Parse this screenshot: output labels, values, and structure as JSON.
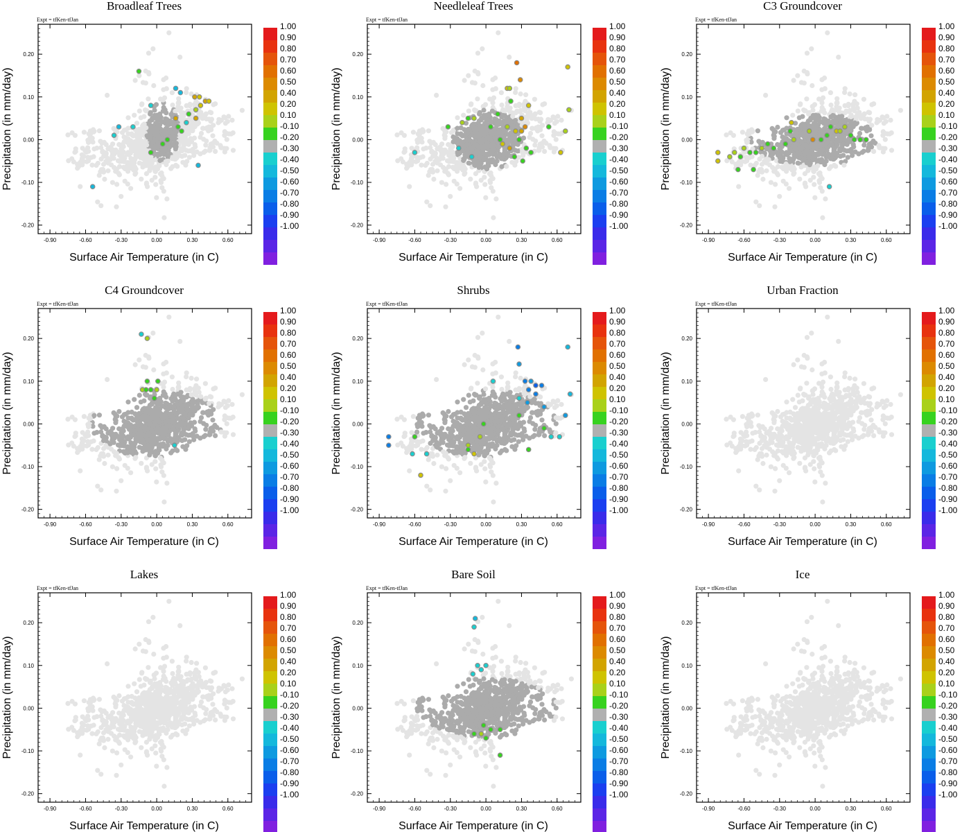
{
  "shared": {
    "expt_label": "Expt = tfKen-tfJan",
    "xlabel": "Surface Air Temperature (in C)",
    "ylabel": "Precipitation (in mm/day)",
    "xlim": [
      -1.0,
      0.8
    ],
    "ylim": [
      -0.22,
      0.27
    ],
    "xticks": [
      -0.9,
      -0.6,
      -0.3,
      0.0,
      0.3,
      0.6
    ],
    "xtick_labels": [
      "-0.90",
      "-0.60",
      "-0.30",
      "0.00",
      "0.30",
      "0.60"
    ],
    "yticks": [
      -0.2,
      -0.1,
      0.0,
      0.1,
      0.2
    ],
    "ytick_labels": [
      "-0.20",
      "-0.10",
      "0.00",
      "0.10",
      "0.20"
    ],
    "colorbar": {
      "labels": [
        "1.00",
        "0.90",
        "0.80",
        "0.70",
        "0.60",
        "0.50",
        "0.40",
        "0.20",
        "0.10",
        "-0.10",
        "-0.20",
        "-0.30",
        "-0.40",
        "-0.50",
        "-0.60",
        "-0.70",
        "-0.80",
        "-0.90",
        "-1.00"
      ],
      "colors": [
        "#e41a1c",
        "#e8320e",
        "#e5540a",
        "#e17000",
        "#dc8a00",
        "#d2a400",
        "#cfc300",
        "#a9d11a",
        "#37d21f",
        "#b0b0b0",
        "#19cfcf",
        "#14b8dc",
        "#0e9ae0",
        "#0a7de5",
        "#0a5eea",
        "#1b3ff0",
        "#3a2bea",
        "#5b25e6",
        "#8020e0"
      ]
    },
    "background_point_color": "#e4e4e4",
    "grey_point_color": "#ababab"
  },
  "chart_data": [
    {
      "type": "scatter",
      "title": "Broadleaf Trees",
      "highlight_points": [
        {
          "x": -0.15,
          "y": 0.16,
          "c": 0.1
        },
        {
          "x": -0.05,
          "y": 0.08,
          "c": -0.2
        },
        {
          "x": 0.16,
          "y": 0.12,
          "c": -0.3
        },
        {
          "x": 0.2,
          "y": 0.11,
          "c": -0.3
        },
        {
          "x": 0.32,
          "y": 0.1,
          "c": 0.5
        },
        {
          "x": 0.36,
          "y": 0.1,
          "c": 0.4
        },
        {
          "x": 0.41,
          "y": 0.09,
          "c": 0.5
        },
        {
          "x": 0.44,
          "y": 0.09,
          "c": 0.4
        },
        {
          "x": 0.37,
          "y": 0.08,
          "c": 0.4
        },
        {
          "x": 0.33,
          "y": 0.07,
          "c": 0.2
        },
        {
          "x": 0.27,
          "y": 0.06,
          "c": 0.1
        },
        {
          "x": 0.33,
          "y": 0.05,
          "c": 0.5
        },
        {
          "x": 0.16,
          "y": 0.05,
          "c": 0.5
        },
        {
          "x": 0.18,
          "y": 0.03,
          "c": 0.1
        },
        {
          "x": 0.21,
          "y": 0.02,
          "c": 0.1
        },
        {
          "x": 0.09,
          "y": 0.0,
          "c": 0.1
        },
        {
          "x": 0.05,
          "y": -0.01,
          "c": 0.1
        },
        {
          "x": -0.05,
          "y": -0.03,
          "c": 0.1
        },
        {
          "x": 0.25,
          "y": 0.04,
          "c": -0.2
        },
        {
          "x": -0.2,
          "y": 0.03,
          "c": -0.2
        },
        {
          "x": -0.36,
          "y": 0.01,
          "c": -0.2
        },
        {
          "x": -0.32,
          "y": 0.03,
          "c": -0.3
        },
        {
          "x": 0.35,
          "y": -0.06,
          "c": -0.3
        },
        {
          "x": -0.54,
          "y": -0.11,
          "c": -0.3
        }
      ]
    },
    {
      "type": "scatter",
      "title": "Needleleaf Trees",
      "highlight_points": [
        {
          "x": 0.26,
          "y": 0.18,
          "c": 0.7
        },
        {
          "x": 0.69,
          "y": 0.17,
          "c": 0.4
        },
        {
          "x": 0.29,
          "y": 0.14,
          "c": 0.6
        },
        {
          "x": 0.18,
          "y": 0.12,
          "c": 0.4
        },
        {
          "x": 0.2,
          "y": 0.12,
          "c": 0.2
        },
        {
          "x": 0.36,
          "y": 0.08,
          "c": 0.4
        },
        {
          "x": 0.21,
          "y": 0.09,
          "c": 0.1
        },
        {
          "x": 0.7,
          "y": 0.07,
          "c": 0.2
        },
        {
          "x": -0.15,
          "y": 0.05,
          "c": 0.1
        },
        {
          "x": -0.1,
          "y": 0.05,
          "c": 0.2
        },
        {
          "x": 0.1,
          "y": 0.06,
          "c": 0.1
        },
        {
          "x": 0.3,
          "y": 0.05,
          "c": 0.5
        },
        {
          "x": 0.33,
          "y": 0.03,
          "c": 0.6
        },
        {
          "x": -0.32,
          "y": 0.03,
          "c": 0.1
        },
        {
          "x": -0.2,
          "y": 0.04,
          "c": 0.2
        },
        {
          "x": 0.04,
          "y": 0.03,
          "c": 0.1
        },
        {
          "x": 0.18,
          "y": 0.03,
          "c": 0.2
        },
        {
          "x": 0.25,
          "y": 0.02,
          "c": 0.4
        },
        {
          "x": 0.3,
          "y": 0.02,
          "c": 0.5
        },
        {
          "x": 0.53,
          "y": 0.03,
          "c": 0.1
        },
        {
          "x": 0.67,
          "y": 0.02,
          "c": 0.2
        },
        {
          "x": 0.12,
          "y": 0.0,
          "c": 0.1
        },
        {
          "x": 0.28,
          "y": 0.0,
          "c": 0.1
        },
        {
          "x": 0.14,
          "y": -0.01,
          "c": 0.4
        },
        {
          "x": 0.2,
          "y": -0.02,
          "c": 0.5
        },
        {
          "x": 0.34,
          "y": -0.02,
          "c": 0.1
        },
        {
          "x": 0.38,
          "y": -0.03,
          "c": 0.1
        },
        {
          "x": 0.63,
          "y": -0.03,
          "c": 0.4
        },
        {
          "x": 0.31,
          "y": -0.05,
          "c": 0.1
        },
        {
          "x": 0.24,
          "y": -0.04,
          "c": 0.1
        },
        {
          "x": -0.23,
          "y": -0.02,
          "c": -0.2
        },
        {
          "x": -0.6,
          "y": -0.03,
          "c": -0.2
        },
        {
          "x": -0.12,
          "y": -0.04,
          "c": -0.2
        }
      ]
    },
    {
      "type": "scatter",
      "title": "C3 Groundcover",
      "highlight_points": [
        {
          "x": -0.82,
          "y": -0.03,
          "c": 0.4
        },
        {
          "x": -0.82,
          "y": -0.05,
          "c": 0.4
        },
        {
          "x": -0.72,
          "y": -0.04,
          "c": 0.2
        },
        {
          "x": -0.68,
          "y": -0.03,
          "c": 0.2
        },
        {
          "x": -0.63,
          "y": -0.04,
          "c": 0.1
        },
        {
          "x": -0.6,
          "y": -0.02,
          "c": 0.2
        },
        {
          "x": -0.55,
          "y": -0.03,
          "c": 0.1
        },
        {
          "x": -0.5,
          "y": -0.03,
          "c": 0.1
        },
        {
          "x": -0.45,
          "y": -0.02,
          "c": 0.2
        },
        {
          "x": -0.4,
          "y": -0.01,
          "c": 0.1
        },
        {
          "x": -0.35,
          "y": -0.02,
          "c": 0.1
        },
        {
          "x": -0.65,
          "y": -0.07,
          "c": 0.1
        },
        {
          "x": -0.52,
          "y": -0.07,
          "c": 0.1
        },
        {
          "x": -0.2,
          "y": 0.04,
          "c": 0.4
        },
        {
          "x": -0.21,
          "y": 0.02,
          "c": 0.1
        },
        {
          "x": -0.18,
          "y": 0.0,
          "c": 0.2
        },
        {
          "x": -0.25,
          "y": -0.01,
          "c": 0.1
        },
        {
          "x": -0.05,
          "y": 0.02,
          "c": 0.2
        },
        {
          "x": -0.02,
          "y": 0.0,
          "c": 0.6
        },
        {
          "x": 0.05,
          "y": 0.0,
          "c": 0.1
        },
        {
          "x": 0.1,
          "y": 0.01,
          "c": 0.1
        },
        {
          "x": 0.13,
          "y": 0.03,
          "c": 0.1
        },
        {
          "x": 0.18,
          "y": 0.02,
          "c": 0.4
        },
        {
          "x": 0.21,
          "y": 0.02,
          "c": 0.2
        },
        {
          "x": 0.25,
          "y": 0.03,
          "c": 0.2
        },
        {
          "x": 0.3,
          "y": 0.01,
          "c": 0.1
        },
        {
          "x": 0.33,
          "y": 0.0,
          "c": 0.1
        },
        {
          "x": 0.38,
          "y": 0.0,
          "c": 0.1
        },
        {
          "x": 0.43,
          "y": 0.0,
          "c": 0.1
        },
        {
          "x": 0.12,
          "y": -0.11,
          "c": -0.2
        }
      ]
    },
    {
      "type": "scatter",
      "title": "C4 Groundcover",
      "highlight_points": [
        {
          "x": -0.13,
          "y": 0.21,
          "c": -0.2
        },
        {
          "x": -0.08,
          "y": 0.2,
          "c": 0.2
        },
        {
          "x": -0.08,
          "y": 0.1,
          "c": 0.1
        },
        {
          "x": 0.01,
          "y": 0.1,
          "c": 0.1
        },
        {
          "x": -0.12,
          "y": 0.08,
          "c": 0.2
        },
        {
          "x": -0.09,
          "y": 0.08,
          "c": 0.1
        },
        {
          "x": -0.05,
          "y": 0.08,
          "c": 0.1
        },
        {
          "x": 0.0,
          "y": 0.08,
          "c": 0.2
        },
        {
          "x": -0.02,
          "y": 0.06,
          "c": 0.1
        },
        {
          "x": 0.15,
          "y": -0.05,
          "c": -0.2
        }
      ]
    },
    {
      "type": "scatter",
      "title": "Shrubs",
      "highlight_points": [
        {
          "x": 0.27,
          "y": 0.18,
          "c": -0.5
        },
        {
          "x": 0.69,
          "y": 0.18,
          "c": -0.3
        },
        {
          "x": 0.28,
          "y": 0.14,
          "c": -0.4
        },
        {
          "x": 0.06,
          "y": 0.1,
          "c": -0.2
        },
        {
          "x": 0.33,
          "y": 0.1,
          "c": -0.5
        },
        {
          "x": 0.38,
          "y": 0.1,
          "c": -0.4
        },
        {
          "x": 0.42,
          "y": 0.09,
          "c": -0.6
        },
        {
          "x": 0.47,
          "y": 0.09,
          "c": -0.5
        },
        {
          "x": 0.36,
          "y": 0.08,
          "c": -0.5
        },
        {
          "x": 0.42,
          "y": 0.07,
          "c": -0.5
        },
        {
          "x": 0.71,
          "y": 0.07,
          "c": -0.3
        },
        {
          "x": 0.28,
          "y": 0.06,
          "c": -0.2
        },
        {
          "x": 0.35,
          "y": 0.05,
          "c": -0.4
        },
        {
          "x": 0.49,
          "y": 0.04,
          "c": -0.4
        },
        {
          "x": 0.67,
          "y": 0.02,
          "c": -0.4
        },
        {
          "x": 0.28,
          "y": 0.02,
          "c": 0.1
        },
        {
          "x": -0.02,
          "y": 0.0,
          "c": 0.1
        },
        {
          "x": 0.49,
          "y": -0.01,
          "c": 0.1
        },
        {
          "x": 0.55,
          "y": -0.03,
          "c": -0.2
        },
        {
          "x": 0.62,
          "y": -0.03,
          "c": -0.2
        },
        {
          "x": -0.82,
          "y": -0.03,
          "c": -0.5
        },
        {
          "x": -0.82,
          "y": -0.05,
          "c": -0.5
        },
        {
          "x": -0.6,
          "y": -0.03,
          "c": 0.1
        },
        {
          "x": -0.05,
          "y": -0.03,
          "c": 0.2
        },
        {
          "x": -0.15,
          "y": -0.05,
          "c": 0.2
        },
        {
          "x": -0.15,
          "y": -0.06,
          "c": 0.1
        },
        {
          "x": -0.1,
          "y": -0.07,
          "c": 0.4
        },
        {
          "x": 0.36,
          "y": -0.06,
          "c": 0.1
        },
        {
          "x": -0.5,
          "y": -0.07,
          "c": -0.2
        },
        {
          "x": -0.62,
          "y": -0.07,
          "c": -0.2
        },
        {
          "x": -0.55,
          "y": -0.12,
          "c": 0.4
        }
      ]
    },
    {
      "type": "scatter",
      "title": "Urban Fraction",
      "highlight_points": []
    },
    {
      "type": "scatter",
      "title": "Lakes",
      "highlight_points": []
    },
    {
      "type": "scatter",
      "title": "Bare Soil",
      "highlight_points": [
        {
          "x": -0.09,
          "y": 0.21,
          "c": -0.3
        },
        {
          "x": -0.1,
          "y": 0.19,
          "c": -0.2
        },
        {
          "x": -0.07,
          "y": 0.1,
          "c": -0.2
        },
        {
          "x": 0.0,
          "y": 0.1,
          "c": -0.2
        },
        {
          "x": -0.11,
          "y": 0.08,
          "c": -0.2
        },
        {
          "x": -0.04,
          "y": 0.09,
          "c": -0.2
        },
        {
          "x": -0.1,
          "y": -0.06,
          "c": 0.1
        },
        {
          "x": -0.04,
          "y": -0.06,
          "c": 0.2
        },
        {
          "x": 0.0,
          "y": -0.07,
          "c": 0.1
        },
        {
          "x": -0.02,
          "y": -0.04,
          "c": 0.1
        },
        {
          "x": 0.04,
          "y": -0.05,
          "c": 0.1
        },
        {
          "x": 0.12,
          "y": -0.05,
          "c": 0.1
        },
        {
          "x": 0.12,
          "y": -0.11,
          "c": 0.1
        }
      ]
    },
    {
      "type": "scatter",
      "title": "Ice",
      "highlight_points": []
    }
  ]
}
